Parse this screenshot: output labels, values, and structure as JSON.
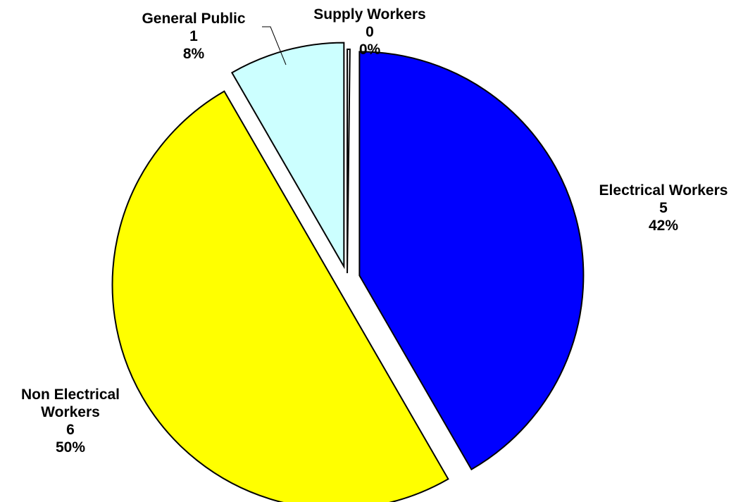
{
  "chart_data": {
    "type": "pie",
    "title": "",
    "slices": [
      {
        "name": "Electrical Workers",
        "value": 5,
        "percent": "42%",
        "color": "#0000ff"
      },
      {
        "name": "Non Electrical Workers",
        "value": 6,
        "percent": "50%",
        "color": "#ffff00"
      },
      {
        "name": "General Public",
        "value": 1,
        "percent": "8%",
        "color": "#ccffff"
      },
      {
        "name": "Supply Workers",
        "value": 0,
        "percent": "0%",
        "color": "#ffffff"
      }
    ],
    "labels": {
      "electrical": {
        "name": "Electrical Workers",
        "value": "5",
        "percent": "42%"
      },
      "non_electrical": {
        "name_line1": "Non Electrical",
        "name_line2": "Workers",
        "value": "6",
        "percent": "50%"
      },
      "general_public": {
        "name": "General Public",
        "value": "1",
        "percent": "8%"
      },
      "supply": {
        "name": "Supply Workers",
        "value": "0",
        "percent": "0%"
      }
    },
    "legend": "none",
    "exploded": true
  }
}
